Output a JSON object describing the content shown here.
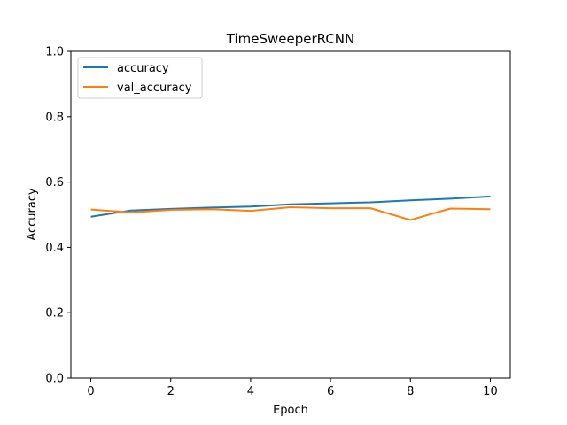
{
  "chart_data": {
    "type": "line",
    "title": "TimeSweeperRCNN",
    "xlabel": "Epoch",
    "ylabel": "Accuracy",
    "x": [
      0,
      1,
      2,
      3,
      4,
      5,
      6,
      7,
      8,
      9,
      10
    ],
    "xlim": [
      -0.5,
      10.5
    ],
    "ylim": [
      0,
      1
    ],
    "xticks": [
      0,
      2,
      4,
      6,
      8,
      10
    ],
    "yticks": [
      0.0,
      0.2,
      0.4,
      0.6,
      0.8,
      1.0
    ],
    "xtick_labels": [
      "0",
      "2",
      "4",
      "6",
      "8",
      "10"
    ],
    "ytick_labels": [
      "0.0",
      "0.2",
      "0.4",
      "0.6",
      "0.8",
      "1.0"
    ],
    "grid": false,
    "legend_position": "top-left",
    "series": [
      {
        "name": "accuracy",
        "color": "#1f77b4",
        "values": [
          0.494,
          0.513,
          0.518,
          0.522,
          0.525,
          0.532,
          0.535,
          0.538,
          0.544,
          0.549,
          0.556
        ]
      },
      {
        "name": "val_accuracy",
        "color": "#ff7f0e",
        "values": [
          0.516,
          0.507,
          0.515,
          0.517,
          0.512,
          0.523,
          0.52,
          0.52,
          0.484,
          0.519,
          0.517
        ]
      }
    ]
  }
}
